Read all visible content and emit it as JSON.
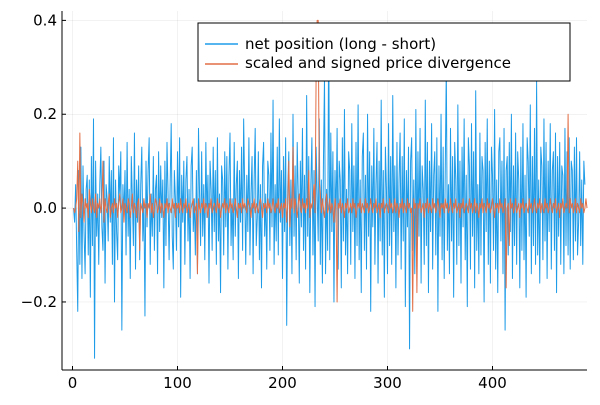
{
  "chart_data": {
    "type": "line",
    "title": "",
    "xlabel": "",
    "ylabel": "",
    "xlim": [
      -10,
      490
    ],
    "ylim": [
      -0.345,
      0.42
    ],
    "x_ticks": [
      0,
      100,
      200,
      300,
      400
    ],
    "x_tick_labels": [
      "0",
      "100",
      "200",
      "300",
      "400"
    ],
    "y_ticks": [
      -0.2,
      0.0,
      0.2,
      0.4
    ],
    "y_tick_labels": [
      "−0.2",
      "0.0",
      "0.2",
      "0.4"
    ],
    "grid": true,
    "legend_position": "top-right",
    "series": [
      {
        "name": "net position (long - short)",
        "color": "#1f9ce8",
        "x_start": 1,
        "x_step": 1,
        "values": [
          0.0,
          -0.03,
          0.05,
          -0.09,
          -0.22,
          0.08,
          -0.12,
          0.13,
          -0.15,
          0.09,
          -0.05,
          -0.14,
          0.04,
          0.07,
          -0.1,
          0.06,
          -0.19,
          0.11,
          -0.08,
          0.19,
          -0.32,
          0.1,
          -0.06,
          0.03,
          -0.12,
          0.05,
          0.13,
          -0.04,
          -0.09,
          0.1,
          -0.16,
          0.05,
          0.02,
          -0.07,
          0.11,
          -0.03,
          0.08,
          -0.12,
          0.15,
          -0.2,
          0.06,
          -0.05,
          -0.11,
          0.09,
          0.03,
          0.12,
          -0.26,
          0.05,
          -0.02,
          0.08,
          -0.1,
          0.14,
          -0.06,
          0.04,
          -0.15,
          0.11,
          0.02,
          -0.08,
          0.16,
          -0.13,
          0.06,
          -0.03,
          0.09,
          -0.11,
          0.05,
          0.13,
          -0.07,
          0.02,
          -0.23,
          0.1,
          -0.04,
          0.08,
          0.15,
          -0.12,
          0.03,
          -0.06,
          0.11,
          -0.09,
          0.04,
          0.07,
          -0.14,
          0.12,
          -0.05,
          0.09,
          -0.02,
          0.06,
          -0.17,
          0.1,
          -0.08,
          0.14,
          0.03,
          -0.11,
          0.05,
          0.18,
          -0.06,
          -0.13,
          0.08,
          0.02,
          -0.09,
          0.12,
          -0.04,
          0.15,
          -0.19,
          0.07,
          -0.03,
          0.1,
          -0.12,
          0.06,
          0.11,
          -0.07,
          0.04,
          -0.15,
          0.09,
          0.13,
          -0.05,
          0.02,
          -0.1,
          0.08,
          -0.14,
          0.17,
          0.03,
          -0.08,
          0.12,
          -0.06,
          0.05,
          -0.11,
          0.14,
          -0.02,
          0.07,
          -0.16,
          0.1,
          0.04,
          -0.09,
          0.13,
          -0.05,
          0.08,
          -0.12,
          0.15,
          -0.07,
          0.03,
          -0.18,
          0.09,
          0.06,
          -0.1,
          0.12,
          -0.04,
          0.11,
          -0.13,
          0.07,
          0.16,
          -0.08,
          0.02,
          -0.11,
          0.14,
          -0.06,
          0.05,
          0.1,
          -0.15,
          0.08,
          -0.03,
          0.13,
          -0.09,
          0.19,
          0.04,
          -0.12,
          0.07,
          -0.05,
          0.15,
          -0.1,
          0.03,
          0.11,
          -0.14,
          0.06,
          0.17,
          -0.08,
          -0.02,
          0.12,
          -0.11,
          0.05,
          -0.17,
          0.09,
          0.14,
          -0.06,
          0.03,
          -0.13,
          0.1,
          0.07,
          -0.09,
          0.16,
          -0.04,
          0.23,
          -0.12,
          0.05,
          -0.07,
          0.13,
          -0.1,
          0.19,
          -0.03,
          0.08,
          -0.15,
          0.11,
          -0.05,
          0.15,
          -0.25,
          0.04,
          0.12,
          -0.08,
          0.06,
          -0.14,
          0.2,
          -0.06,
          0.09,
          -0.11,
          0.14,
          0.03,
          -0.16,
          0.1,
          -0.04,
          0.17,
          -0.09,
          0.07,
          -0.13,
          0.24,
          -0.06,
          0.11,
          -0.18,
          0.05,
          0.15,
          -0.1,
          0.08,
          -0.21,
          0.13,
          0.03,
          -0.07,
          0.19,
          -0.12,
          0.06,
          -0.16,
          0.1,
          0.28,
          -0.14,
          0.04,
          -0.09,
          0.39,
          -0.11,
          0.16,
          -0.05,
          0.12,
          -0.2,
          0.08,
          -0.03,
          0.17,
          -0.13,
          0.1,
          0.06,
          -0.17,
          0.15,
          -0.07,
          0.21,
          -0.1,
          0.04,
          -0.14,
          0.12,
          0.08,
          -0.12,
          0.18,
          -0.05,
          0.09,
          -0.15,
          0.14,
          -0.08,
          0.22,
          -0.11,
          0.06,
          -0.18,
          0.11,
          0.16,
          -0.09,
          0.07,
          -0.13,
          0.2,
          -0.06,
          0.12,
          -0.22,
          0.09,
          -0.04,
          0.17,
          -0.12,
          0.05,
          0.14,
          -0.16,
          0.1,
          -0.07,
          0.23,
          -0.1,
          0.08,
          -0.19,
          0.13,
          0.04,
          -0.14,
          0.18,
          -0.08,
          0.11,
          -0.12,
          0.24,
          -0.05,
          0.09,
          -0.17,
          0.14,
          -0.1,
          0.06,
          0.16,
          -0.13,
          0.11,
          -0.07,
          0.19,
          -0.21,
          0.08,
          -0.04,
          0.13,
          -0.3,
          0.1,
          0.15,
          -0.09,
          0.06,
          -0.14,
          0.21,
          -0.11,
          0.12,
          -0.06,
          0.17,
          -0.16,
          0.09,
          0.04,
          -0.12,
          0.23,
          -0.08,
          0.14,
          -0.18,
          0.1,
          -0.05,
          0.18,
          -0.13,
          0.07,
          0.12,
          -0.1,
          0.15,
          -0.22,
          0.09,
          -0.06,
          0.2,
          -0.11,
          0.13,
          -0.15,
          0.08,
          0.3,
          -0.09,
          0.05,
          -0.14,
          0.17,
          -0.07,
          0.11,
          -0.19,
          0.14,
          0.06,
          -0.12,
          0.22,
          -0.08,
          0.1,
          -0.16,
          0.13,
          -0.04,
          0.19,
          -0.11,
          0.07,
          -0.21,
          0.15,
          0.09,
          -0.13,
          0.18,
          -0.06,
          0.12,
          -0.17,
          0.25,
          -0.09,
          0.05,
          -0.14,
          0.16,
          -0.1,
          0.11,
          0.08,
          -0.2,
          0.14,
          -0.05,
          0.19,
          -0.12,
          0.1,
          -0.16,
          0.13,
          0.07,
          -0.09,
          0.21,
          -0.13,
          0.06,
          -0.18,
          0.12,
          0.15,
          -0.07,
          0.1,
          -0.14,
          0.17,
          -0.26,
          0.08,
          0.11,
          -0.1,
          0.14,
          -0.05,
          0.2,
          -0.15,
          0.09,
          -0.08,
          0.16,
          -0.12,
          0.12,
          0.06,
          -0.17,
          0.13,
          -0.09,
          0.18,
          -0.11,
          0.07,
          -0.19,
          0.15,
          0.1,
          -0.06,
          0.22,
          -0.14,
          0.11,
          -0.08,
          0.17,
          -0.12,
          0.27,
          -0.1,
          0.06,
          -0.16,
          0.13,
          0.09,
          -0.11,
          0.19,
          -0.07,
          0.14,
          -0.15,
          0.1,
          -0.05,
          0.18,
          -0.13,
          0.08,
          0.12,
          -0.09,
          0.16,
          -0.18,
          0.11,
          -0.06,
          0.14,
          -0.12,
          0.09,
          0.07,
          -0.14,
          0.17,
          -0.08,
          0.12,
          -0.1,
          0.15,
          -0.13,
          0.1,
          0.08,
          -0.11,
          0.13,
          -0.07,
          0.15,
          -0.1,
          -0.03,
          0.12,
          -0.08,
          0.06,
          -0.12,
          0.1,
          0.05
        ]
      },
      {
        "name": "scaled and signed price divergence",
        "color": "#e26f46",
        "x_start": 1,
        "x_step": 1,
        "values": [
          0.0,
          -0.01,
          0.0,
          0.02,
          0.1,
          -0.05,
          0.16,
          -0.02,
          0.03,
          0.01,
          -0.03,
          0.02,
          0.0,
          0.01,
          -0.02,
          0.04,
          0.01,
          -0.01,
          0.02,
          0.0,
          -0.01,
          0.03,
          -0.02,
          0.01,
          0.0,
          0.02,
          -0.01,
          0.01,
          0.1,
          -0.03,
          0.02,
          0.0,
          -0.01,
          0.01,
          0.03,
          -0.02,
          0.0,
          0.01,
          -0.01,
          0.02,
          0.0,
          0.01,
          -0.02,
          0.01,
          0.03,
          -0.01,
          0.0,
          0.02,
          -0.03,
          0.01,
          0.0,
          -0.01,
          0.02,
          0.01,
          -0.02,
          0.0,
          0.03,
          -0.01,
          0.01,
          0.0,
          -0.02,
          0.01,
          0.02,
          -0.09,
          0.01,
          0.0,
          -0.01,
          0.02,
          0.0,
          0.01,
          -0.02,
          0.01,
          0.0,
          0.03,
          -0.01,
          0.01,
          -0.02,
          0.0,
          0.02,
          0.01,
          -0.01,
          0.0,
          0.02,
          -0.01,
          0.01,
          0.0,
          -0.02,
          0.01,
          0.0,
          0.02,
          -0.01,
          0.01,
          0.0,
          -0.01,
          0.02,
          0.0,
          0.01,
          -0.02,
          0.01,
          0.0,
          0.01,
          -0.01,
          0.02,
          0.0,
          -0.01,
          0.01,
          0.0,
          0.02,
          -0.01,
          0.0,
          0.01,
          -0.02,
          0.0,
          0.01,
          0.02,
          -0.01,
          0.0,
          0.01,
          -0.14,
          0.02,
          0.0,
          -0.01,
          0.01,
          0.0,
          0.02,
          -0.01,
          0.01,
          0.0,
          -0.02,
          0.01,
          0.0,
          0.02,
          -0.01,
          0.0,
          0.01,
          0.0,
          -0.01,
          0.02,
          0.0,
          0.01,
          -0.02,
          0.0,
          0.01,
          0.0,
          0.02,
          -0.01,
          0.01,
          0.0,
          -0.01,
          0.02,
          0.0,
          0.01,
          -0.01,
          0.0,
          0.02,
          0.0,
          -0.02,
          0.01,
          0.0,
          0.01,
          -0.01,
          0.02,
          0.0,
          0.01,
          0.0,
          -0.01,
          0.02,
          0.01,
          0.0,
          -0.02,
          0.01,
          0.0,
          0.02,
          -0.01,
          0.01,
          0.0,
          -0.01,
          0.01,
          0.02,
          0.0,
          -0.02,
          0.01,
          0.0,
          0.01,
          -0.01,
          0.02,
          0.0,
          0.01,
          -0.01,
          0.0,
          0.02,
          0.0,
          -0.01,
          0.01,
          0.0,
          0.02,
          -0.01,
          0.0,
          0.01,
          -0.02,
          0.01,
          0.0,
          0.02,
          -0.03,
          0.01,
          0.1,
          -0.04,
          0.02,
          0.0,
          0.13,
          -0.01,
          0.02,
          0.0,
          -0.02,
          0.01,
          0.03,
          0.0,
          -0.01,
          0.02,
          0.0,
          0.01,
          -0.01,
          0.02,
          0.0,
          0.08,
          -0.02,
          0.01,
          0.0,
          0.02,
          0.05,
          -0.01,
          0.28,
          0.4,
          0.4,
          0.06,
          0.03,
          -0.01,
          0.02,
          0.0,
          -0.02,
          0.01,
          0.03,
          -0.01,
          0.0,
          0.02,
          -0.01,
          0.01,
          0.0,
          -0.03,
          0.02,
          0.0,
          -0.2,
          0.01,
          0.0,
          0.02,
          -0.01,
          0.01,
          0.0,
          -0.02,
          0.01,
          0.0,
          0.02,
          -0.01,
          0.0,
          0.01,
          -0.01,
          0.02,
          0.0,
          0.01,
          -0.02,
          0.0,
          0.01,
          0.0,
          0.02,
          -0.01,
          0.01,
          0.0,
          -0.01,
          0.02,
          0.0,
          0.01,
          -0.01,
          0.0,
          0.02,
          0.0,
          -0.01,
          0.01,
          0.0,
          0.02,
          -0.01,
          0.0,
          0.01,
          -0.02,
          0.01,
          0.0,
          0.02,
          -0.01,
          0.0,
          0.01,
          0.0,
          -0.01,
          0.02,
          0.0,
          0.01,
          -0.01,
          0.0,
          0.02,
          -0.01,
          0.01,
          0.0,
          -0.02,
          0.01,
          0.0,
          0.02,
          -0.01,
          0.01,
          0.0,
          -0.01,
          0.02,
          0.0,
          0.01,
          -0.01,
          0.0,
          -0.22,
          0.02,
          0.0,
          0.01,
          -0.18,
          0.01,
          0.0,
          0.02,
          -0.01,
          0.0,
          0.01,
          -0.02,
          0.01,
          0.0,
          0.02,
          -0.01,
          0.01,
          0.0,
          -0.01,
          0.02,
          0.0,
          0.01,
          -0.01,
          0.0,
          0.02,
          0.0,
          -0.02,
          0.01,
          0.0,
          0.01,
          -0.01,
          0.02,
          0.0,
          0.01,
          -0.01,
          0.0,
          0.02,
          0.0,
          -0.01,
          0.01,
          0.0,
          0.02,
          -0.01,
          0.0,
          0.01,
          -0.02,
          0.01,
          0.0,
          0.02,
          -0.01,
          0.0,
          0.01,
          0.0,
          -0.01,
          0.02,
          0.0,
          0.01,
          -0.01,
          0.0,
          0.02,
          -0.01,
          0.01,
          0.0,
          -0.02,
          0.01,
          0.0,
          0.02,
          -0.01,
          0.01,
          0.0,
          -0.01,
          0.02,
          0.0,
          0.01,
          -0.01,
          0.0,
          0.02,
          0.0,
          -0.02,
          0.01,
          0.0,
          0.01,
          -0.01,
          0.02,
          0.0,
          0.01,
          -0.01,
          0.0,
          0.02,
          -0.17,
          0.0,
          0.01,
          -0.08,
          0.02,
          0.0,
          0.01,
          -0.01,
          0.0,
          0.02,
          -0.01,
          0.0,
          0.01,
          -0.02,
          0.01,
          0.0,
          0.02,
          -0.01,
          0.0,
          0.01,
          0.0,
          -0.01,
          0.02,
          0.0,
          0.01,
          -0.01,
          0.0,
          0.02,
          0.0,
          -0.01,
          0.01,
          0.0,
          0.02,
          -0.01,
          0.01,
          0.0,
          -0.01,
          0.02,
          0.0,
          0.01,
          -0.01,
          0.0,
          0.02,
          0.0,
          -0.01,
          0.01,
          0.0,
          0.02,
          -0.01,
          0.0,
          0.01,
          -0.02,
          0.01,
          0.0,
          0.02,
          -0.01,
          0.0,
          0.01,
          0.0,
          0.2,
          -0.01,
          0.02,
          0.0,
          0.01,
          -0.01,
          0.0,
          0.02,
          -0.01,
          0.01,
          0.0,
          -0.01,
          0.02,
          0.0,
          0.01,
          -0.01,
          0.0,
          0.02,
          0.0
        ]
      }
    ]
  }
}
